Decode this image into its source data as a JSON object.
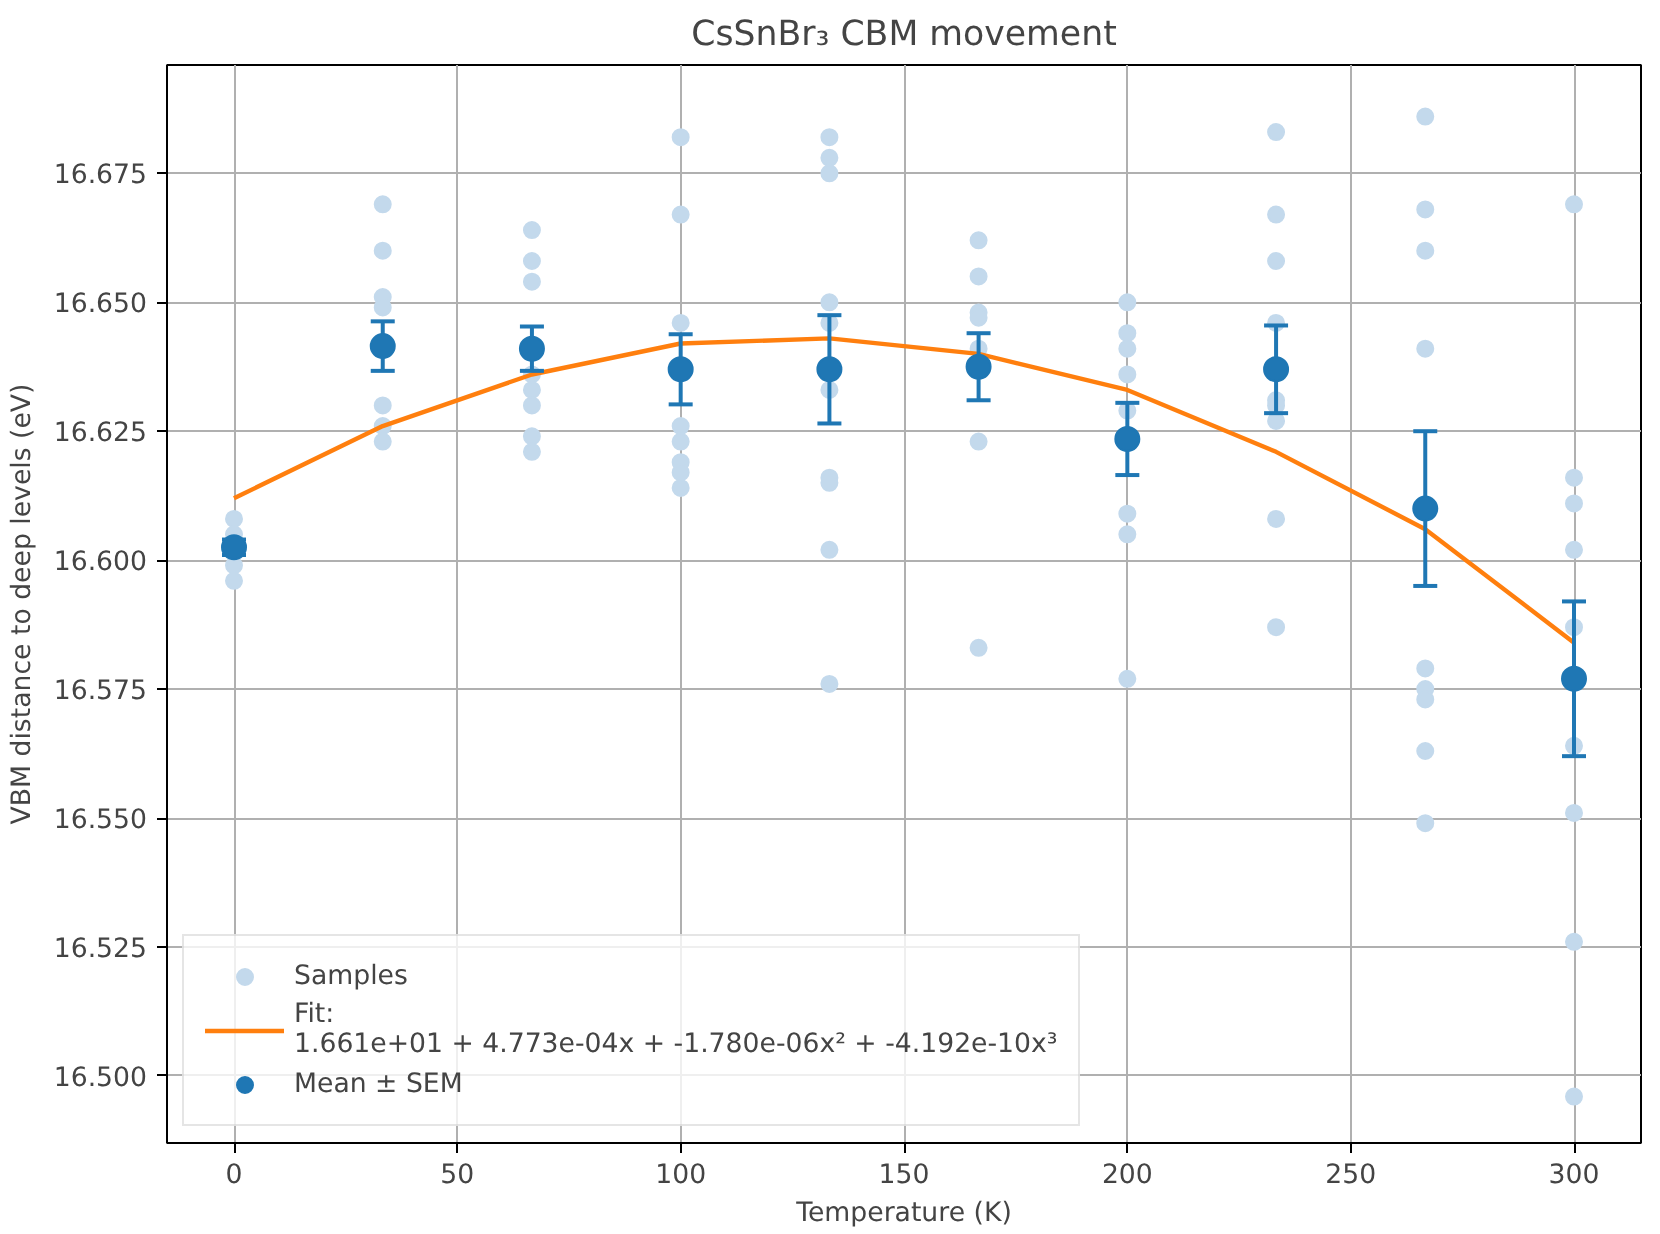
{
  "chart_data": {
    "type": "scatter",
    "title": "CsSnBr₃ CBM movement",
    "xlabel": "Temperature (K)",
    "ylabel": "VBM distance to deep levels (eV)",
    "xlim": [
      -15,
      315
    ],
    "ylim": [
      16.487,
      16.696
    ],
    "xticks": [
      0,
      50,
      100,
      150,
      200,
      250,
      300
    ],
    "yticks": [
      {
        "value": 16.5,
        "label": "16.500"
      },
      16.525,
      {
        "value": 16.55,
        "label": "16.550"
      },
      16.575,
      {
        "value": 16.6,
        "label": "16.600"
      },
      16.625,
      {
        "value": 16.65,
        "label": "16.650"
      },
      16.675
    ],
    "grid": true,
    "legend": "bottom left",
    "marker": "circle",
    "series": [
      {
        "name": "Samples",
        "color": "#c3d9ec",
        "x": [
          0,
          0,
          0,
          0,
          33.3,
          33.3,
          33.3,
          33.3,
          33.3,
          33.3,
          33.3,
          66.7,
          66.7,
          66.7,
          66.7,
          66.7,
          66.7,
          66.7,
          66.7,
          100,
          100,
          100,
          100,
          100,
          100,
          100,
          100,
          133.3,
          133.3,
          133.3,
          133.3,
          133.3,
          133.3,
          133.3,
          133.3,
          133.3,
          133.3,
          166.7,
          166.7,
          166.7,
          166.7,
          166.7,
          166.7,
          166.7,
          200,
          200,
          200,
          200,
          200,
          200,
          200,
          200,
          233.3,
          233.3,
          233.3,
          233.3,
          233.3,
          233.3,
          233.3,
          233.3,
          233.3,
          266.7,
          266.7,
          266.7,
          266.7,
          266.7,
          266.7,
          266.7,
          266.7,
          266.7,
          300,
          300,
          300,
          300,
          300,
          300,
          300,
          300,
          300
        ],
        "values": [
          16.608,
          16.605,
          16.599,
          16.596,
          16.669,
          16.66,
          16.651,
          16.649,
          16.63,
          16.626,
          16.623,
          16.664,
          16.658,
          16.654,
          16.636,
          16.633,
          16.63,
          16.624,
          16.621,
          16.682,
          16.667,
          16.646,
          16.626,
          16.623,
          16.619,
          16.617,
          16.614,
          16.682,
          16.678,
          16.675,
          16.65,
          16.646,
          16.633,
          16.616,
          16.615,
          16.602,
          16.576,
          16.662,
          16.655,
          16.648,
          16.647,
          16.641,
          16.623,
          16.583,
          16.65,
          16.644,
          16.641,
          16.636,
          16.629,
          16.609,
          16.605,
          16.577,
          16.683,
          16.667,
          16.658,
          16.646,
          16.631,
          16.63,
          16.627,
          16.608,
          16.587,
          16.686,
          16.668,
          16.66,
          16.641,
          16.579,
          16.575,
          16.573,
          16.563,
          16.549,
          16.669,
          16.616,
          16.611,
          16.602,
          16.587,
          16.564,
          16.551,
          16.526,
          16.496
        ]
      },
      {
        "name": "Fit:\n1.661e+01 + 4.773e-04x + -1.780e-06x² + -4.192e-10x³",
        "type": "line",
        "color": "#ff7f0e",
        "marker": "none",
        "x": [
          0,
          33.3,
          66.7,
          100,
          133.3,
          166.7,
          200,
          233.3,
          266.7,
          300
        ],
        "values": [
          16.612,
          16.626,
          16.636,
          16.642,
          16.643,
          16.64,
          16.633,
          16.621,
          16.606,
          16.584
        ]
      },
      {
        "name": "Mean ± SEM",
        "color": "#1f77b4",
        "x": [
          0,
          33.3,
          66.7,
          100,
          133.3,
          166.7,
          200,
          233.3,
          266.7,
          300
        ],
        "values": [
          16.6025,
          16.6415,
          16.641,
          16.637,
          16.637,
          16.6375,
          16.6235,
          16.637,
          16.61,
          16.577
        ],
        "errors": [
          0.0015,
          0.0048,
          0.0043,
          0.0068,
          0.0105,
          0.0065,
          0.007,
          0.0085,
          0.015,
          0.015
        ]
      }
    ]
  }
}
